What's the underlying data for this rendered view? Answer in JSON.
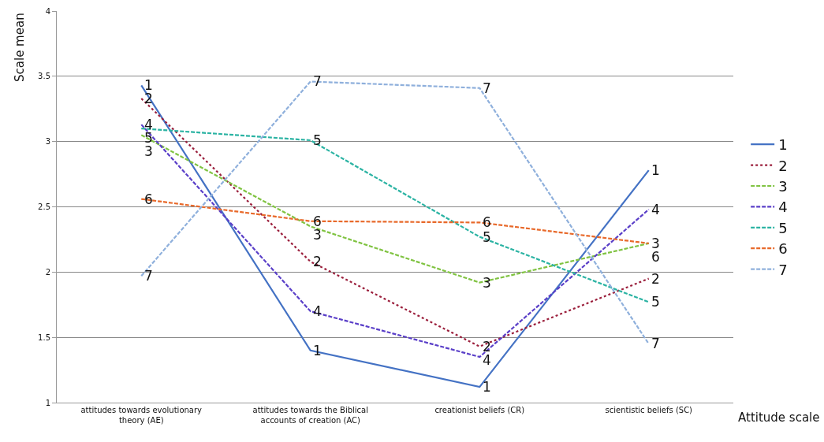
{
  "chart_data": {
    "type": "line",
    "xlabel": "Attitude scale",
    "ylabel": "Scale mean",
    "categories": [
      "attitudes towards evolutionary theory (AE)",
      "attitudes towards the Biblical accounts of creation (AC)",
      "creationist beliefs (CR)",
      "scientistic beliefs (SC)"
    ],
    "series": [
      {
        "name": "1",
        "color": "#4472c4",
        "line_style": "solid",
        "values": [
          3.43,
          1.4,
          1.12,
          2.78
        ]
      },
      {
        "name": "2",
        "color": "#9b1f3c",
        "line_style": "dotted",
        "values": [
          3.33,
          2.08,
          1.43,
          1.95
        ]
      },
      {
        "name": "3",
        "color": "#80c342",
        "line_style": "dashed",
        "values": [
          3.05,
          2.35,
          1.92,
          2.22
        ]
      },
      {
        "name": "4",
        "color": "#5a3fc8",
        "line_style": "dashed",
        "values": [
          3.13,
          1.7,
          1.35,
          2.48
        ]
      },
      {
        "name": "5",
        "color": "#2bb3a3",
        "line_style": "dashed",
        "values": [
          3.1,
          3.01,
          2.27,
          1.77
        ]
      },
      {
        "name": "6",
        "color": "#e8692a",
        "line_style": "dashed",
        "values": [
          2.56,
          2.39,
          2.38,
          2.22
        ]
      },
      {
        "name": "7",
        "color": "#8fb0dc",
        "line_style": "dashed",
        "values": [
          1.97,
          3.46,
          3.41,
          1.45
        ]
      }
    ],
    "ylim": [
      1,
      4
    ],
    "yticks": [
      1,
      1.5,
      2,
      2.5,
      3,
      3.5,
      4
    ],
    "grid": "y",
    "legend": "right",
    "marker": "none"
  }
}
